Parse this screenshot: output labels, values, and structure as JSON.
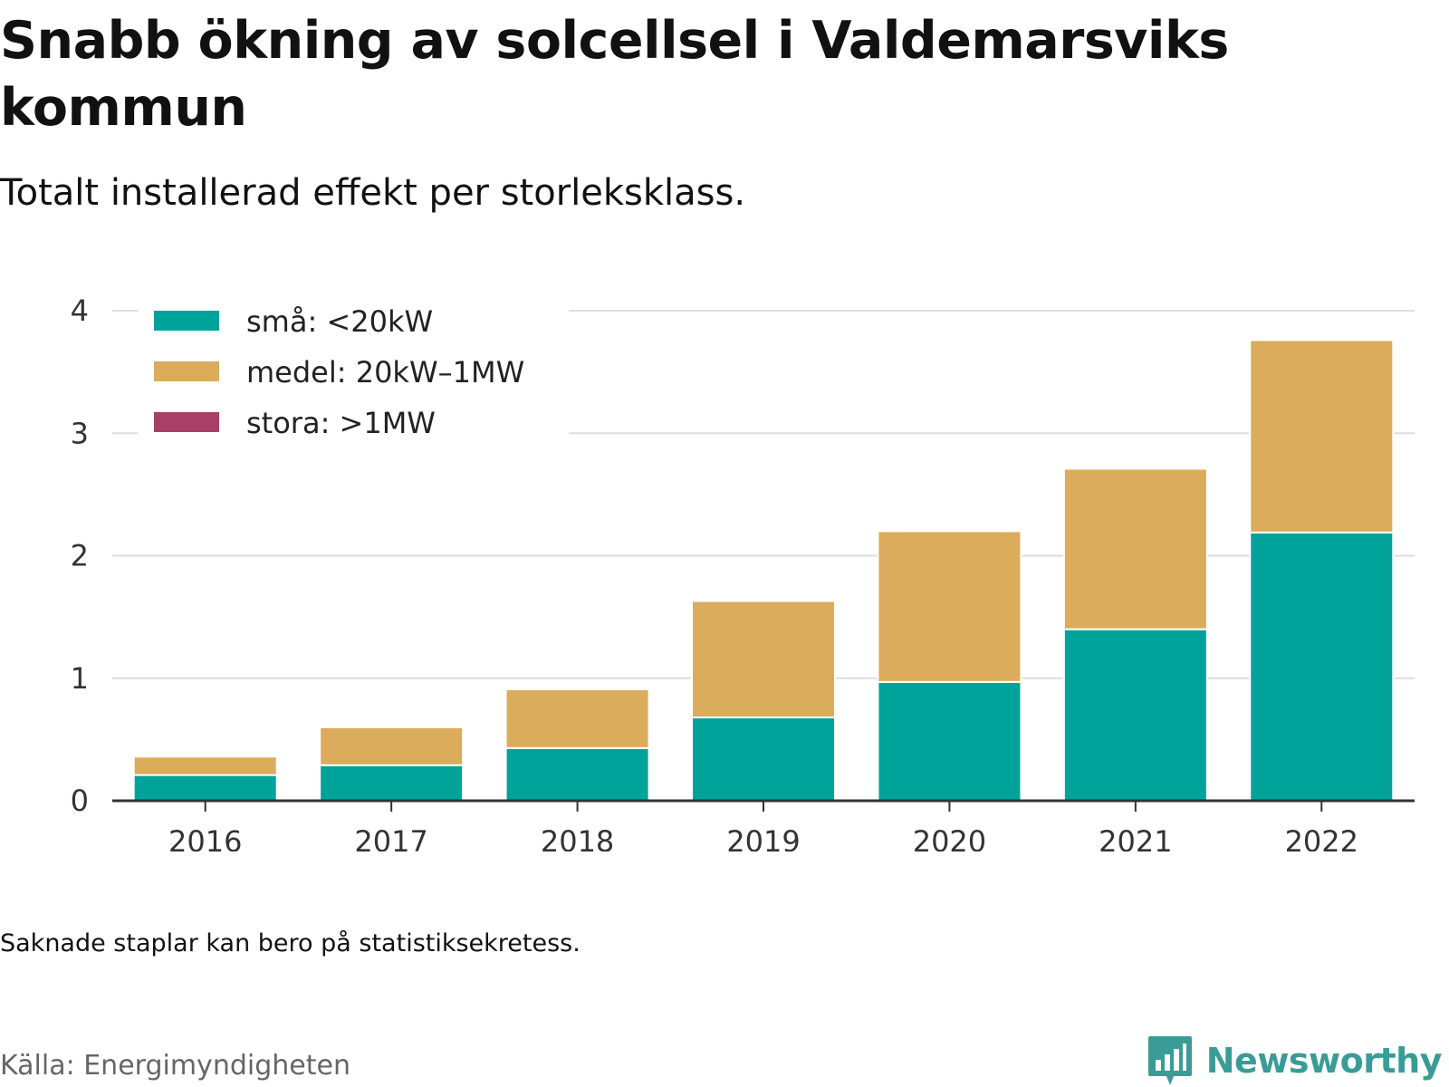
{
  "title": "Snabb ökning av solcellsel i Valdemarsviks kommun",
  "subtitle": "Totalt installerad effekt per storleksklass.",
  "note": "Saknade staplar kan bero på statistiksekretess.",
  "source": "Källa: Energimyndigheten",
  "brand": {
    "name": "Newsworthy",
    "icon": "bar-chart-bubble-icon",
    "color": "#3a9c96"
  },
  "chart_data": {
    "type": "bar",
    "stacked": true,
    "categories": [
      "2016",
      "2017",
      "2018",
      "2019",
      "2020",
      "2021",
      "2022"
    ],
    "series": [
      {
        "name": "små: <20kW",
        "color": "#00a39a",
        "values": [
          0.21,
          0.29,
          0.43,
          0.68,
          0.97,
          1.4,
          2.19
        ]
      },
      {
        "name": "medel: 20kW–1MW",
        "color": "#dbac5b",
        "values": [
          0.15,
          0.31,
          0.48,
          0.95,
          1.23,
          1.31,
          1.57
        ]
      },
      {
        "name": "stora: >1MW",
        "color": "#a83f67",
        "values": [
          0,
          0,
          0,
          0,
          0,
          0,
          0
        ]
      }
    ],
    "ylim": [
      0,
      4
    ],
    "yticks": [
      "0",
      "1",
      "2",
      "3",
      "4"
    ],
    "grid": true,
    "legend": "top-left",
    "xlabel": "",
    "ylabel": ""
  }
}
